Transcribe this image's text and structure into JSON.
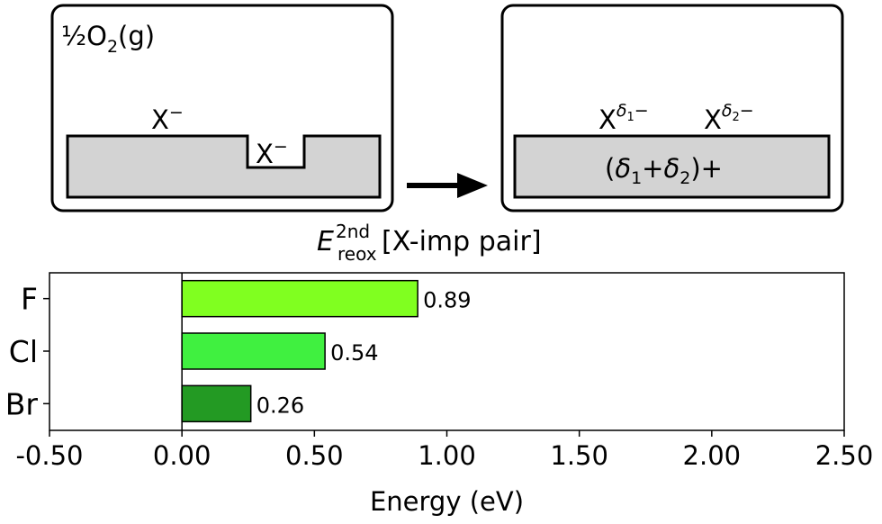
{
  "schematic": {
    "left_panel": {
      "gas_label": "½O",
      "gas_sub": "2",
      "gas_state": "(g)",
      "surface_ion": "X",
      "surface_ion_charge": "−",
      "pit_ion": "X",
      "pit_ion_charge": "−"
    },
    "right_panel": {
      "ion1": "X",
      "ion1_charge_sym": "δ",
      "ion1_charge_sub": "1",
      "ion1_charge_sign": "−",
      "ion2": "X",
      "ion2_charge_sym": "δ",
      "ion2_charge_sub": "2",
      "ion2_charge_sign": "−",
      "slab_open": "(",
      "slab_d1": "δ",
      "slab_sub1": "1",
      "slab_plus": "+",
      "slab_d2": "δ",
      "slab_sub2": "2",
      "slab_close": ")+"
    },
    "energy_label": {
      "symbol": "E",
      "superscript": "2nd",
      "subscript": "reox",
      "bracket_text": "[X-imp pair]"
    }
  },
  "chart_data": {
    "type": "bar",
    "orientation": "horizontal",
    "categories": [
      "F",
      "Cl",
      "Br"
    ],
    "values": [
      0.89,
      0.54,
      0.26
    ],
    "value_labels": [
      "0.89",
      "0.54",
      "0.26"
    ],
    "colors": [
      "#80ff20",
      "#40f040",
      "#239a23"
    ],
    "xlabel": "Energy (eV)",
    "xlim": [
      -0.5,
      2.5
    ],
    "xticks": [
      -0.5,
      0.0,
      0.5,
      1.0,
      1.5,
      2.0,
      2.5
    ],
    "xtick_labels": [
      "-0.50",
      "0.00",
      "0.50",
      "1.00",
      "1.50",
      "2.00",
      "2.50"
    ],
    "zero_line": true,
    "grid": false
  }
}
